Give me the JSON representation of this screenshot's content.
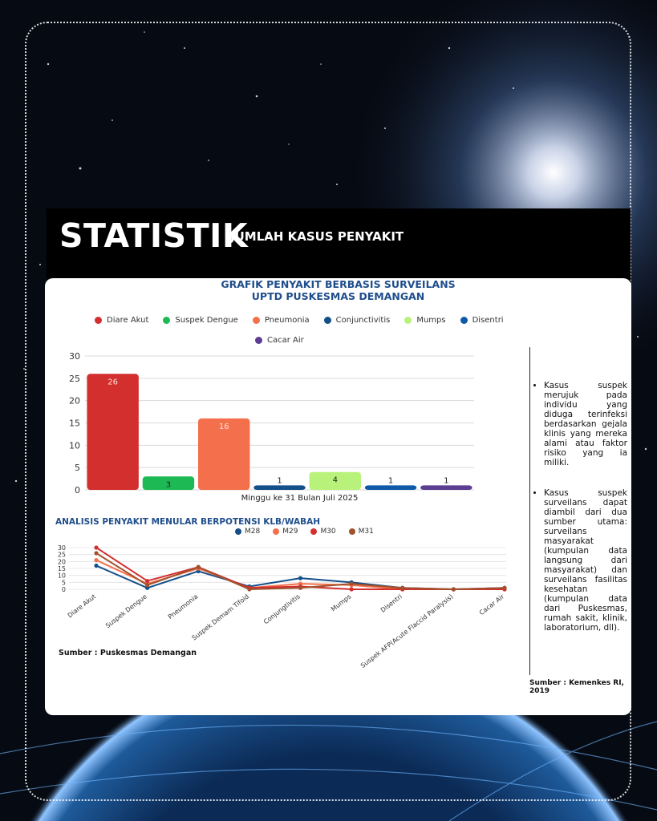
{
  "header": {
    "title": "STATISTIK",
    "subtitle": "JUMLAH KASUS PENYAKIT"
  },
  "colors": {
    "accent_title": "#1f4e8c",
    "band": "#000000"
  },
  "chart_data": [
    {
      "type": "bar",
      "title_line1": "GRAFIK PENYAKIT BERBASIS SURVEILANS",
      "title_line2": "UPTD PUSKESMAS DEMANGAN",
      "categories": [
        "Diare Akut",
        "Suspek Dengue",
        "Pneumonia",
        "Conjunctivitis",
        "Mumps",
        "Disentri",
        "Cacar Air"
      ],
      "values": [
        26,
        3,
        16,
        1,
        4,
        1,
        1
      ],
      "colors": [
        "#d32f2f",
        "#1db954",
        "#f4704c",
        "#134f8a",
        "#b9f27a",
        "#0f5aa8",
        "#5b3d91"
      ],
      "xlabel": "Minggu ke 31 Bulan Juli 2025",
      "ylim": [
        0,
        30
      ],
      "yticks": [
        0,
        5,
        10,
        15,
        20,
        25,
        30
      ],
      "legend_position": "top",
      "grid": true
    },
    {
      "type": "line",
      "title": "ANALISIS  PENYAKIT MENULAR  BERPOTENSI KLB/WABAH",
      "categories": [
        "Diare Akut",
        "Suspek Dengue",
        "Pneumonia",
        "Suspek Demam Tifoid",
        "Conjungtivitis",
        "Mumps",
        "Disentri",
        "Suspek AFP(Acute Flaccid Paralysis)",
        "Cacar Air"
      ],
      "series": [
        {
          "name": "M28",
          "color": "#134f8a",
          "values": [
            17,
            1,
            13,
            2,
            8,
            5,
            1,
            0,
            1
          ]
        },
        {
          "name": "M29",
          "color": "#f4704c",
          "values": [
            21,
            4,
            15,
            1,
            4,
            3,
            0,
            0,
            0
          ]
        },
        {
          "name": "M30",
          "color": "#d32f2f",
          "values": [
            30,
            6,
            16,
            1,
            2,
            0,
            0,
            0,
            0
          ]
        },
        {
          "name": "M31",
          "color": "#a0522d",
          "values": [
            26,
            3,
            16,
            0,
            1,
            4,
            1,
            0,
            1
          ]
        }
      ],
      "ylim": [
        0,
        30
      ],
      "yticks": [
        0,
        5,
        10,
        15,
        20,
        25,
        30
      ],
      "legend_position": "top",
      "grid": true
    }
  ],
  "notes": {
    "items": [
      "Kasus suspek merujuk pada individu yang diduga terinfeksi berdasarkan gejala klinis yang mereka alami atau faktor risiko yang ia miliki.",
      "Kasus suspek surveilans dapat diambil dari dua sumber utama: surveilans masyarakat (kumpulan data langsung dari masyarakat) dan surveilans fasilitas kesehatan (kumpulan data dari Puskesmas, rumah sakit, klinik, laboratorium, dll)."
    ]
  },
  "sources": {
    "left": "Sumber : Puskesmas Demangan",
    "right": "Sumber : Kemenkes RI, 2019"
  }
}
